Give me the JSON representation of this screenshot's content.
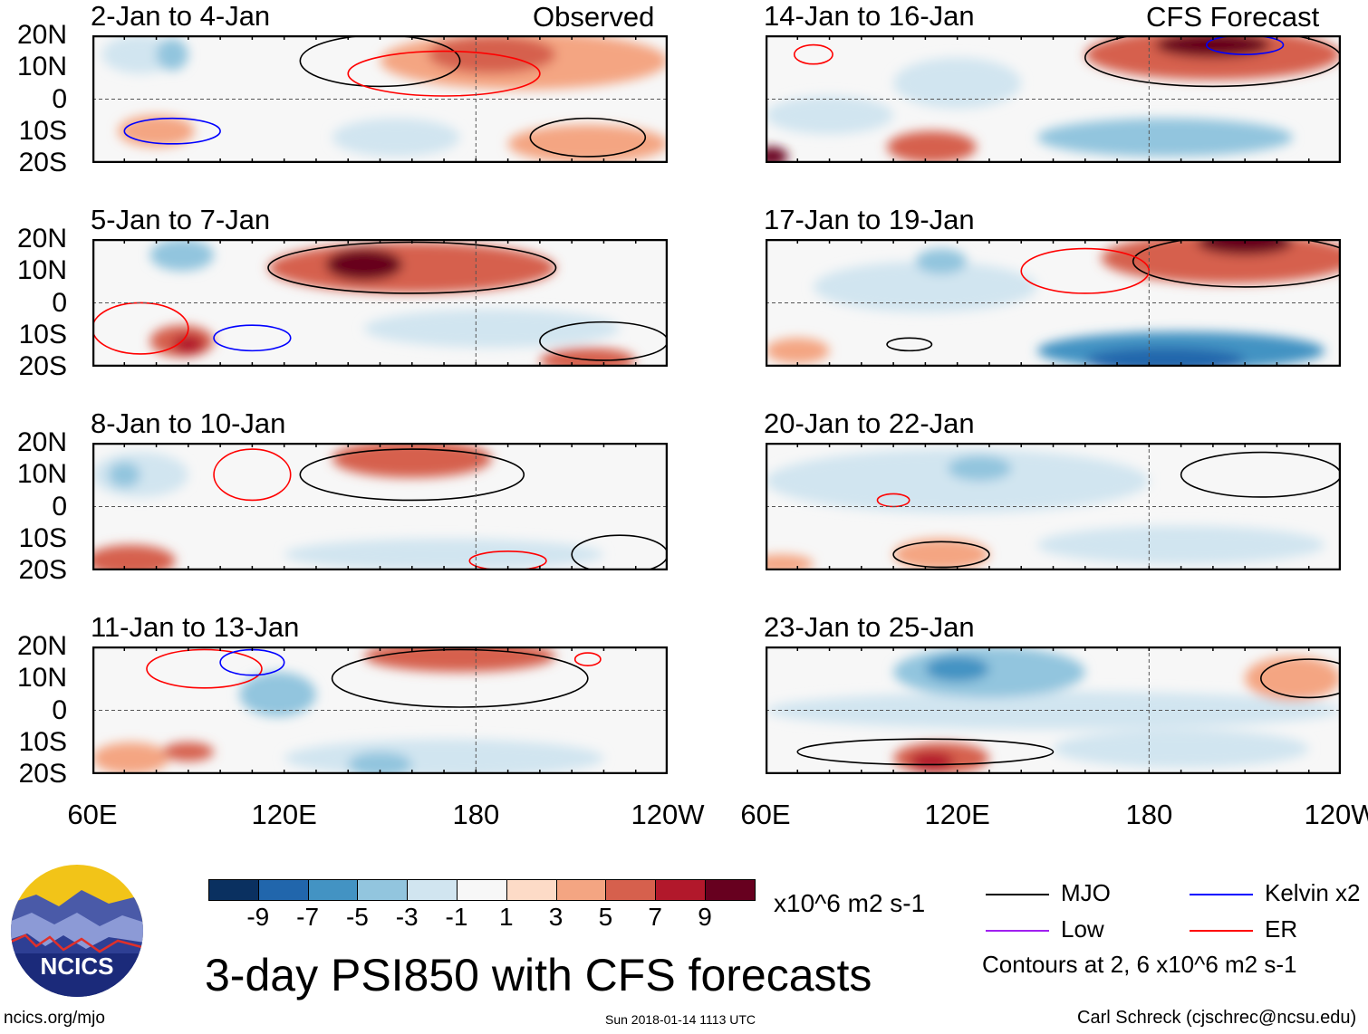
{
  "figure": {
    "title": "3-day PSI850 with CFS forecasts",
    "observed_label": "Observed",
    "forecast_label": "CFS Forecast",
    "units": "x10^6 m2 s-1",
    "timestamp": "Sun 2018-01-14 1113 UTC",
    "site": "ncics.org/mjo",
    "author": "Carl Schreck (cjschrec@ncsu.edu)",
    "logo_text": "NCICS",
    "lat_ticks": [
      "20N",
      "10N",
      "0",
      "10S",
      "20S"
    ],
    "lon_ticks": [
      "60E",
      "120E",
      "180",
      "120W"
    ],
    "lon_range": [
      60,
      240
    ],
    "lat_range": [
      -20,
      20
    ]
  },
  "colorbar": {
    "colors": [
      "#0a3060",
      "#2166ac",
      "#4393c3",
      "#92c5de",
      "#d1e5f0",
      "#f7f7f7",
      "#fddbc7",
      "#f4a582",
      "#d6604d",
      "#b2182b",
      "#67001f"
    ],
    "labels": [
      "-9",
      "-7",
      "-5",
      "-3",
      "-1",
      "1",
      "3",
      "5",
      "7",
      "9"
    ]
  },
  "legend": {
    "items": [
      {
        "label": "MJO",
        "color": "#000000"
      },
      {
        "label": "Kelvin x2",
        "color": "#0000ff"
      },
      {
        "label": "Low",
        "color": "#a020f0"
      },
      {
        "label": "ER",
        "color": "#ff0000"
      }
    ],
    "note": "Contours at 2, 6 x10^6 m2 s-1"
  },
  "panels": [
    {
      "title": "2-Jan to 4-Jan",
      "col": 0,
      "row": 0,
      "field": [
        [
          195,
          12,
          45,
          9,
          3
        ],
        [
          185,
          14,
          20,
          6,
          5
        ],
        [
          215,
          -14,
          25,
          6,
          3
        ],
        [
          75,
          14,
          12,
          6,
          -3
        ],
        [
          85,
          14,
          5,
          5,
          -5
        ],
        [
          155,
          -12,
          20,
          6,
          -3
        ],
        [
          80,
          -10,
          12,
          5,
          3
        ]
      ],
      "contours": [
        [
          "mjo",
          150,
          12,
          25,
          8
        ],
        [
          "er",
          170,
          8,
          30,
          7
        ],
        [
          "kelvin",
          85,
          -10,
          15,
          4
        ],
        [
          "mjo",
          215,
          -12,
          18,
          6
        ]
      ]
    },
    {
      "title": "5-Jan to 7-Jan",
      "col": 0,
      "row": 1,
      "field": [
        [
          160,
          11,
          45,
          8,
          5
        ],
        [
          145,
          12,
          12,
          5,
          9
        ],
        [
          88,
          15,
          10,
          5,
          -5
        ],
        [
          88,
          -12,
          10,
          5,
          5
        ],
        [
          90,
          -13,
          5,
          3,
          7
        ],
        [
          185,
          -8,
          40,
          6,
          -3
        ],
        [
          215,
          -18,
          15,
          4,
          5
        ]
      ],
      "contours": [
        [
          "mjo",
          160,
          11,
          45,
          8
        ],
        [
          "kelvin",
          110,
          -11,
          12,
          4
        ],
        [
          "mjo",
          220,
          -12,
          20,
          6
        ],
        [
          "er",
          75,
          -8,
          15,
          8
        ]
      ]
    },
    {
      "title": "8-Jan to 10-Jan",
      "col": 0,
      "row": 2,
      "field": [
        [
          160,
          15,
          25,
          6,
          5
        ],
        [
          75,
          10,
          15,
          7,
          -3
        ],
        [
          72,
          -17,
          14,
          5,
          5
        ],
        [
          170,
          -15,
          50,
          5,
          -3
        ],
        [
          70,
          10,
          5,
          4,
          -5
        ]
      ],
      "contours": [
        [
          "mjo",
          160,
          10,
          35,
          8
        ],
        [
          "er",
          110,
          10,
          12,
          8
        ],
        [
          "mjo",
          225,
          -15,
          15,
          6
        ],
        [
          "er",
          190,
          -17,
          12,
          3
        ]
      ]
    },
    {
      "title": "11-Jan to 13-Jan",
      "col": 0,
      "row": 3,
      "field": [
        [
          175,
          17,
          30,
          5,
          5
        ],
        [
          118,
          5,
          12,
          7,
          -5
        ],
        [
          170,
          -15,
          50,
          6,
          -3
        ],
        [
          150,
          -17,
          10,
          4,
          -5
        ],
        [
          72,
          -15,
          12,
          5,
          3
        ],
        [
          90,
          -13,
          8,
          3,
          5
        ]
      ],
      "contours": [
        [
          "mjo",
          175,
          10,
          40,
          9
        ],
        [
          "er",
          95,
          13,
          18,
          6
        ],
        [
          "kelvin",
          110,
          15,
          10,
          4
        ],
        [
          "er",
          215,
          16,
          4,
          2
        ]
      ]
    },
    {
      "title": "14-Jan to 16-Jan",
      "col": 1,
      "row": 0,
      "field": [
        [
          200,
          14,
          40,
          8,
          5
        ],
        [
          200,
          17,
          18,
          4,
          9
        ],
        [
          185,
          -12,
          40,
          6,
          -5
        ],
        [
          80,
          -5,
          20,
          6,
          -3
        ],
        [
          112,
          -15,
          14,
          5,
          5
        ],
        [
          62,
          -18,
          5,
          3,
          9
        ],
        [
          120,
          5,
          20,
          8,
          -3
        ]
      ],
      "contours": [
        [
          "mjo",
          200,
          13,
          40,
          9
        ],
        [
          "kelvin",
          210,
          17,
          12,
          3
        ],
        [
          "er",
          75,
          14,
          6,
          3
        ]
      ]
    },
    {
      "title": "17-Jan to 19-Jan",
      "col": 1,
      "row": 1,
      "field": [
        [
          205,
          14,
          40,
          8,
          5
        ],
        [
          210,
          19,
          15,
          4,
          9
        ],
        [
          190,
          -15,
          45,
          6,
          -7
        ],
        [
          185,
          -18,
          25,
          4,
          -9
        ],
        [
          110,
          5,
          35,
          8,
          -3
        ],
        [
          115,
          13,
          8,
          4,
          -5
        ],
        [
          70,
          -15,
          10,
          4,
          3
        ]
      ],
      "contours": [
        [
          "mjo",
          210,
          13,
          35,
          8
        ],
        [
          "er",
          160,
          10,
          20,
          7
        ],
        [
          "mjo",
          105,
          -13,
          7,
          2
        ]
      ]
    },
    {
      "title": "20-Jan to 22-Jan",
      "col": 1,
      "row": 2,
      "field": [
        [
          120,
          8,
          60,
          10,
          -3
        ],
        [
          127,
          12,
          10,
          4,
          -5
        ],
        [
          115,
          -15,
          15,
          5,
          3
        ],
        [
          190,
          -12,
          45,
          6,
          -3
        ],
        [
          65,
          -18,
          10,
          3,
          3
        ]
      ],
      "contours": [
        [
          "mjo",
          215,
          10,
          25,
          7
        ],
        [
          "mjo",
          115,
          -15,
          15,
          4
        ],
        [
          "er",
          100,
          2,
          5,
          2
        ]
      ]
    },
    {
      "title": "23-Jan to 25-Jan",
      "col": 1,
      "row": 3,
      "field": [
        [
          130,
          12,
          30,
          8,
          -5
        ],
        [
          120,
          13,
          10,
          4,
          -7
        ],
        [
          150,
          0,
          90,
          6,
          -3
        ],
        [
          115,
          -15,
          15,
          5,
          5
        ],
        [
          112,
          -16,
          7,
          3,
          7
        ],
        [
          225,
          10,
          15,
          7,
          3
        ],
        [
          190,
          -12,
          40,
          6,
          -3
        ]
      ],
      "contours": [
        [
          "mjo",
          230,
          10,
          15,
          6
        ],
        [
          "mjo",
          110,
          -13,
          40,
          4
        ]
      ]
    }
  ]
}
